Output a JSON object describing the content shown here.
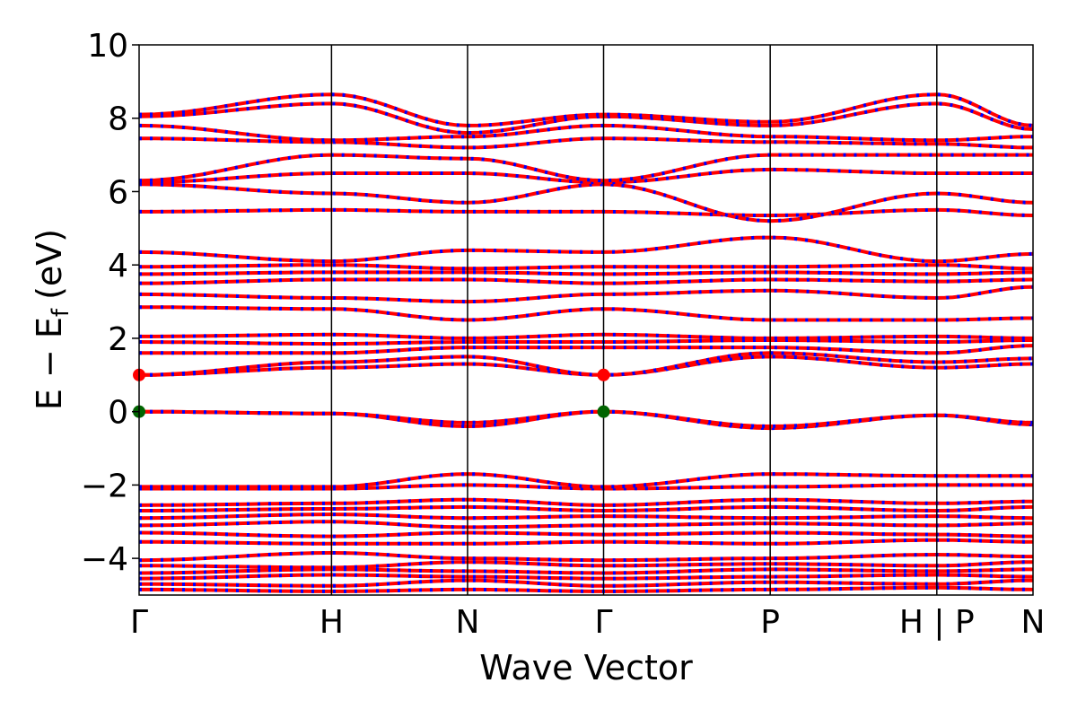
{
  "chart_data": {
    "type": "line",
    "xlabel": "Wave Vector",
    "ylabel_main": "E − E",
    "ylabel_sub": "f",
    "ylabel_unit": "(eV)",
    "ylim": [
      -5,
      10
    ],
    "yticks": [
      "10",
      "8",
      "6",
      "4",
      "2",
      "0",
      "−2",
      "−4"
    ],
    "ytick_values": [
      10,
      8,
      6,
      4,
      2,
      0,
      -2,
      -4
    ],
    "kpoints": [
      {
        "label": "Γ",
        "x": 0.0
      },
      {
        "label": "H",
        "x": 1.0
      },
      {
        "label": "N",
        "x": 1.707
      },
      {
        "label": "Γ",
        "x": 2.414
      },
      {
        "label": "P",
        "x": 3.28
      },
      {
        "label": "H | P",
        "x": 4.146
      },
      {
        "label": "N",
        "x": 4.646
      }
    ],
    "xlim": [
      0,
      4.646
    ],
    "band_style": {
      "line_color": "#ff0000",
      "dash_color": "#0000ff"
    },
    "markers": [
      {
        "name": "CBM",
        "x": 0.0,
        "y": 1.0,
        "color": "#ff0000"
      },
      {
        "name": "VBM",
        "x": 0.0,
        "y": 0.0,
        "color": "#006400"
      },
      {
        "name": "CBM",
        "x": 2.414,
        "y": 1.0,
        "color": "#ff0000"
      },
      {
        "name": "VBM",
        "x": 2.414,
        "y": 0.0,
        "color": "#006400"
      }
    ],
    "bands": [
      {
        "name": "band-1",
        "values": [
          -4.85,
          -4.9,
          -4.85,
          -4.9,
          -4.85,
          -4.8,
          -4.85
        ]
      },
      {
        "name": "band-2",
        "values": [
          -4.7,
          -4.75,
          -4.6,
          -4.75,
          -4.65,
          -4.7,
          -4.6
        ]
      },
      {
        "name": "band-3",
        "values": [
          -4.55,
          -4.45,
          -4.5,
          -4.55,
          -4.5,
          -4.45,
          -4.5
        ]
      },
      {
        "name": "band-4",
        "values": [
          -4.4,
          -4.3,
          -4.35,
          -4.4,
          -4.3,
          -4.35,
          -4.3
        ]
      },
      {
        "name": "band-5",
        "values": [
          -4.2,
          -4.25,
          -4.1,
          -4.2,
          -4.15,
          -4.2,
          -4.1
        ]
      },
      {
        "name": "band-6",
        "values": [
          -4.05,
          -3.85,
          -4.0,
          -4.05,
          -4.0,
          -3.9,
          -3.95
        ]
      },
      {
        "name": "band-7",
        "values": [
          -3.55,
          -3.6,
          -3.6,
          -3.55,
          -3.6,
          -3.5,
          -3.55
        ]
      },
      {
        "name": "band-8",
        "values": [
          -3.3,
          -3.4,
          -3.3,
          -3.35,
          -3.3,
          -3.35,
          -3.4
        ]
      },
      {
        "name": "band-9",
        "values": [
          -3.1,
          -3.0,
          -3.15,
          -3.1,
          -3.05,
          -3.1,
          -3.05
        ]
      },
      {
        "name": "band-10",
        "values": [
          -2.9,
          -2.8,
          -2.9,
          -2.85,
          -2.9,
          -2.85,
          -2.9
        ]
      },
      {
        "name": "band-11",
        "values": [
          -2.7,
          -2.65,
          -2.6,
          -2.7,
          -2.6,
          -2.7,
          -2.6
        ]
      },
      {
        "name": "band-12",
        "values": [
          -2.55,
          -2.5,
          -2.4,
          -2.55,
          -2.4,
          -2.5,
          -2.45
        ]
      },
      {
        "name": "band-13",
        "values": [
          -2.1,
          -2.1,
          -2.0,
          -2.1,
          -2.05,
          -2.0,
          -2.0
        ]
      },
      {
        "name": "band-14",
        "values": [
          -2.05,
          -2.05,
          -1.7,
          -2.05,
          -1.7,
          -1.75,
          -1.75
        ]
      },
      {
        "name": "band-15",
        "values": [
          0.0,
          -0.05,
          -0.4,
          0.0,
          -0.45,
          -0.1,
          -0.35
        ]
      },
      {
        "name": "band-16",
        "values": [
          0.0,
          -0.05,
          -0.3,
          0.0,
          -0.4,
          -0.1,
          -0.3
        ]
      },
      {
        "name": "band-17",
        "values": [
          1.0,
          1.2,
          1.3,
          1.0,
          1.5,
          1.2,
          1.3
        ]
      },
      {
        "name": "band-18",
        "values": [
          1.0,
          1.35,
          1.5,
          1.0,
          1.6,
          1.35,
          1.45
        ]
      },
      {
        "name": "band-19",
        "values": [
          1.6,
          1.6,
          1.75,
          1.75,
          1.75,
          1.6,
          1.8
        ]
      },
      {
        "name": "band-20",
        "values": [
          1.9,
          1.85,
          1.9,
          1.9,
          1.95,
          1.9,
          1.95
        ]
      },
      {
        "name": "band-21",
        "values": [
          2.05,
          2.1,
          2.0,
          2.1,
          2.0,
          2.05,
          2.0
        ]
      },
      {
        "name": "band-22",
        "values": [
          2.85,
          2.8,
          2.5,
          2.8,
          2.5,
          2.5,
          2.55
        ]
      },
      {
        "name": "band-23",
        "values": [
          3.2,
          3.1,
          3.0,
          3.2,
          3.3,
          3.1,
          3.4
        ]
      },
      {
        "name": "band-24",
        "values": [
          3.5,
          3.6,
          3.6,
          3.5,
          3.6,
          3.55,
          3.6
        ]
      },
      {
        "name": "band-25",
        "values": [
          3.75,
          3.8,
          3.8,
          3.75,
          3.8,
          3.75,
          3.8
        ]
      },
      {
        "name": "band-26",
        "values": [
          3.95,
          4.0,
          3.9,
          3.95,
          3.95,
          4.0,
          3.9
        ]
      },
      {
        "name": "band-27",
        "values": [
          4.35,
          4.1,
          4.4,
          4.35,
          4.75,
          4.1,
          4.3
        ]
      },
      {
        "name": "band-28",
        "values": [
          5.45,
          5.5,
          5.45,
          5.45,
          5.35,
          5.5,
          5.35
        ]
      },
      {
        "name": "band-29",
        "values": [
          6.2,
          5.95,
          5.7,
          6.2,
          5.2,
          5.95,
          5.7
        ]
      },
      {
        "name": "band-30",
        "values": [
          6.25,
          6.5,
          6.5,
          6.25,
          6.6,
          6.5,
          6.5
        ]
      },
      {
        "name": "band-31",
        "values": [
          6.3,
          7.0,
          6.9,
          6.3,
          7.0,
          7.0,
          7.0
        ]
      },
      {
        "name": "band-32",
        "values": [
          7.45,
          7.35,
          7.2,
          7.45,
          7.35,
          7.3,
          7.2
        ]
      },
      {
        "name": "band-33",
        "values": [
          7.8,
          7.4,
          7.5,
          7.8,
          7.5,
          7.4,
          7.5
        ]
      },
      {
        "name": "band-34",
        "values": [
          8.05,
          8.4,
          7.6,
          8.05,
          7.8,
          8.4,
          7.7
        ]
      },
      {
        "name": "band-35",
        "values": [
          8.1,
          8.65,
          7.8,
          8.1,
          7.9,
          8.65,
          7.8
        ]
      }
    ]
  }
}
